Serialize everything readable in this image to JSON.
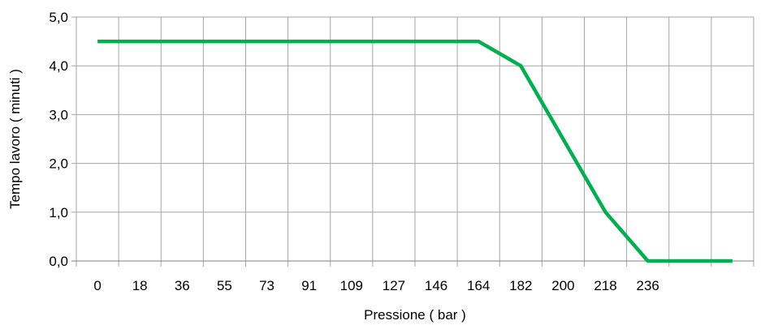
{
  "chart_data": {
    "type": "line",
    "xlabel": "Pressione ( bar )",
    "ylabel": "Tempo lavoro ( minuti )",
    "categories": [
      "0",
      "18",
      "36",
      "55",
      "73",
      "91",
      "109",
      "127",
      "146",
      "164",
      "182",
      "200",
      "218",
      "236",
      "",
      ""
    ],
    "ylim": [
      0,
      5
    ],
    "y_ticks": [
      "0,0",
      "1,0",
      "2,0",
      "3,0",
      "4,0",
      "5,0"
    ],
    "grid": true,
    "legend": "none",
    "series": [
      {
        "color": "#00b050",
        "values": [
          4.5,
          4.5,
          4.5,
          4.5,
          4.5,
          4.5,
          4.5,
          4.5,
          4.5,
          4.5,
          4.0,
          2.5,
          1.0,
          0.0,
          0.0,
          0.0
        ]
      }
    ]
  }
}
